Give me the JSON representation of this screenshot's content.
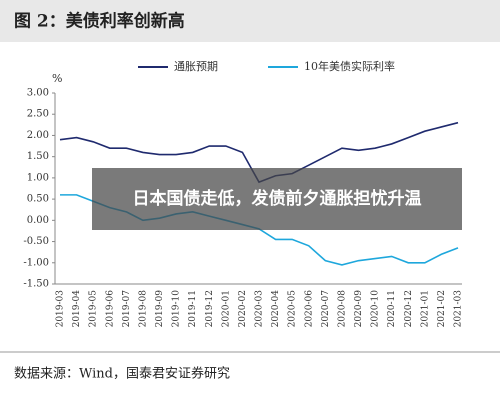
{
  "chart_data": {
    "type": "line",
    "title": "图 2：美债利率创新高",
    "y_label": "%",
    "source": "数据来源：Wind，国泰君安证券研究",
    "overlay": "日本国债走低，发债前夕通胀担忧升温",
    "categories": [
      "2019-03",
      "2019-04",
      "2019-05",
      "2019-06",
      "2019-07",
      "2019-08",
      "2019-09",
      "2019-10",
      "2019-11",
      "2019-12",
      "2020-01",
      "2020-02",
      "2020-03",
      "2020-04",
      "2020-05",
      "2020-06",
      "2020-07",
      "2020-08",
      "2020-09",
      "2020-10",
      "2020-11",
      "2020-12",
      "2021-01",
      "2021-02",
      "2021-03"
    ],
    "series": [
      {
        "name": "通胀预期",
        "color": "#1f2a6e",
        "values": [
          1.9,
          1.95,
          1.85,
          1.7,
          1.7,
          1.6,
          1.55,
          1.55,
          1.6,
          1.75,
          1.75,
          1.6,
          0.9,
          1.05,
          1.1,
          1.3,
          1.5,
          1.7,
          1.65,
          1.7,
          1.8,
          1.95,
          2.1,
          2.2,
          2.3
        ]
      },
      {
        "name": "10年美债实际利率",
        "color": "#1ea7dc",
        "values": [
          0.6,
          0.6,
          0.45,
          0.3,
          0.2,
          0.0,
          0.05,
          0.15,
          0.2,
          0.1,
          0.0,
          -0.1,
          -0.2,
          -0.45,
          -0.45,
          -0.6,
          -0.95,
          -1.05,
          -0.95,
          -0.9,
          -0.85,
          -1.0,
          -1.0,
          -0.8,
          -0.65
        ]
      }
    ],
    "ylim": [
      -1.5,
      3
    ],
    "yticks": [
      {
        "value": 3,
        "label": "3.00"
      },
      {
        "value": 2.5,
        "label": "2.50"
      },
      {
        "value": 2,
        "label": "2.00"
      },
      {
        "value": 1.5,
        "label": "1.50"
      },
      {
        "value": 1,
        "label": "1.00"
      },
      {
        "value": 0.5,
        "label": "0.50"
      },
      {
        "value": 0,
        "label": "0.00"
      },
      {
        "value": -0.5,
        "label": "-0.50"
      },
      {
        "value": -1,
        "label": "-1.00"
      },
      {
        "value": -1.5,
        "label": "-1.50"
      }
    ]
  }
}
